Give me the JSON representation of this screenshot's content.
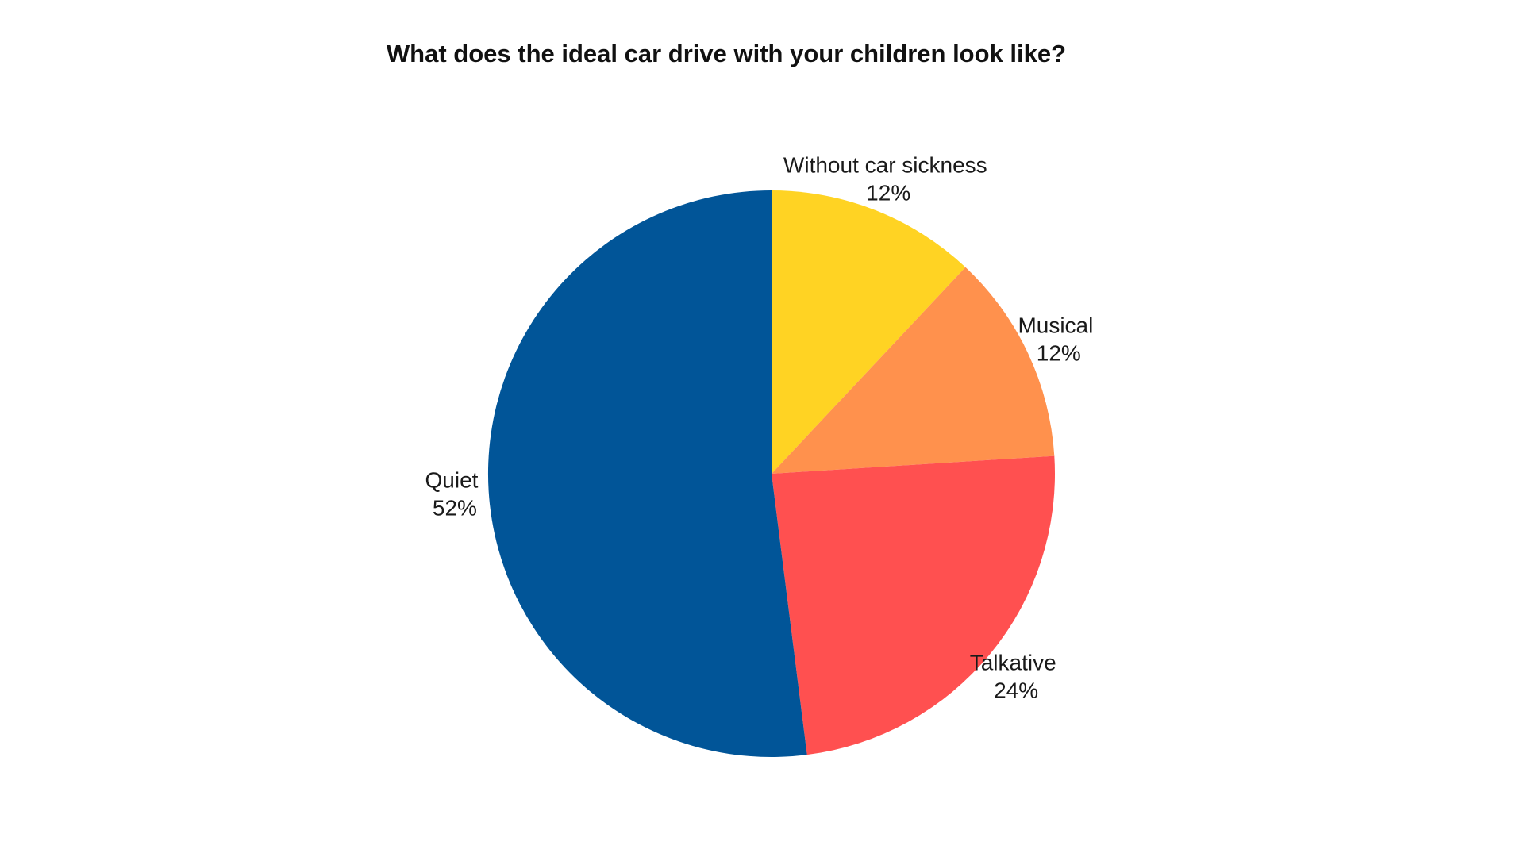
{
  "chart_data": {
    "type": "pie",
    "title": "What does the ideal car drive with your children look like?",
    "start_angle_deg": 0,
    "direction": "clockwise",
    "slices": [
      {
        "label": "Without car sickness",
        "value": 12,
        "value_label": "12%",
        "color": "#FFD323"
      },
      {
        "label": "Musical",
        "value": 12,
        "value_label": "12%",
        "color": "#FF914D"
      },
      {
        "label": "Talkative",
        "value": 24,
        "value_label": "24%",
        "color": "#FF5050"
      },
      {
        "label": "Quiet",
        "value": 52,
        "value_label": "52%",
        "color": "#015598"
      }
    ]
  }
}
